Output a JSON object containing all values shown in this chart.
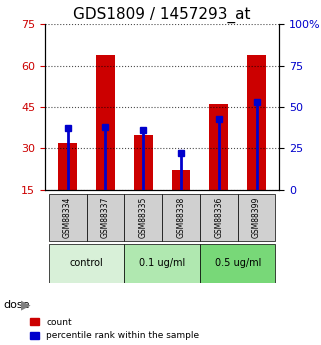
{
  "title": "GDS1809 / 1457293_at",
  "samples": [
    "GSM88334",
    "GSM88337",
    "GSM88335",
    "GSM88338",
    "GSM88336",
    "GSM88399"
  ],
  "counts": [
    32,
    64,
    35,
    22,
    46,
    64
  ],
  "percentiles": [
    37,
    38,
    36,
    22,
    43,
    53
  ],
  "groups": [
    {
      "label": "control",
      "indices": [
        0,
        1
      ],
      "color": "#d8f0d8"
    },
    {
      "label": "0.1 ug/ml",
      "indices": [
        2,
        3
      ],
      "color": "#b0e8b0"
    },
    {
      "label": "0.5 ug/ml",
      "indices": [
        4,
        5
      ],
      "color": "#78d878"
    }
  ],
  "ylim_left": [
    15,
    75
  ],
  "ylim_right": [
    0,
    100
  ],
  "yticks_left": [
    15,
    30,
    45,
    60,
    75
  ],
  "yticks_right": [
    0,
    25,
    50,
    75,
    100
  ],
  "bar_bottom": 15,
  "bar_color_red": "#cc0000",
  "bar_color_blue": "#0000cc",
  "bar_width": 0.5,
  "dose_label": "dose",
  "legend_count": "count",
  "legend_percentile": "percentile rank within the sample",
  "title_fontsize": 11,
  "tick_fontsize": 8,
  "label_fontsize": 8
}
